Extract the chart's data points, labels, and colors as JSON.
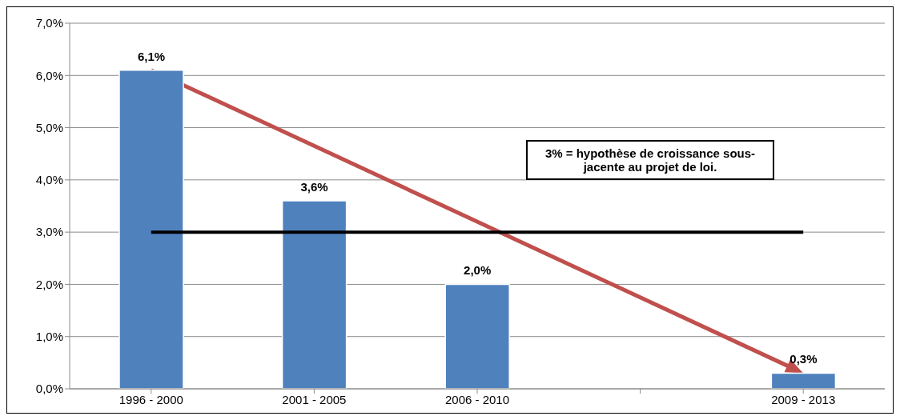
{
  "chart_data": {
    "type": "bar",
    "categories": [
      "1996 - 2000",
      "2001 - 2005",
      "2006 - 2010",
      null,
      "2009 - 2013"
    ],
    "values": [
      6.1,
      3.6,
      2.0,
      null,
      0.3
    ],
    "value_labels": [
      "6,1%",
      "3,6%",
      "2,0%",
      null,
      "0,3%"
    ],
    "color": "#4f81bd",
    "ylim": [
      0,
      7
    ],
    "yticks": [
      {
        "value": 0,
        "label": "0,0%"
      },
      {
        "value": 1,
        "label": "1,0%"
      },
      {
        "value": 2,
        "label": "2,0%"
      },
      {
        "value": 3,
        "label": "3,0%"
      },
      {
        "value": 4,
        "label": "4,0%"
      },
      {
        "value": 5,
        "label": "5,0%"
      },
      {
        "value": 6,
        "label": "6,0%"
      },
      {
        "value": 7,
        "label": "7,0%"
      }
    ],
    "grid": "y",
    "ref_lines": [
      {
        "axis": "y",
        "value": 3,
        "color": "#000000"
      }
    ],
    "annotations": [
      "3% = hypothèse de croissance sous-jacente au projet de loi."
    ]
  }
}
